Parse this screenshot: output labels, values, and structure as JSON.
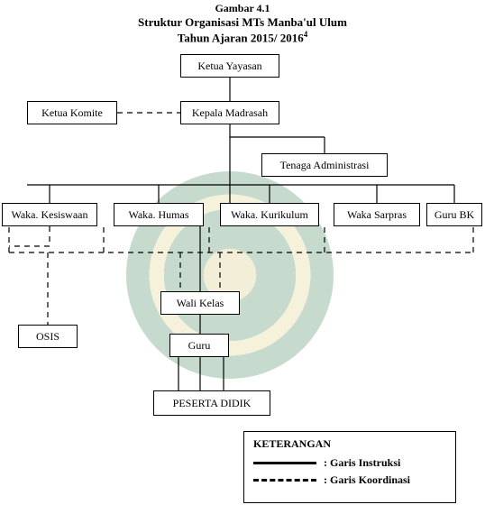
{
  "header": {
    "line0": "Gambar 4.1",
    "line1": "Struktur Organisasi MTs Manba'ul Ulum",
    "line2_prefix": "Tahun Ajaran 2015/ 2016",
    "line2_sup": "4"
  },
  "nodes": {
    "ketua_yayasan": "Ketua Yayasan",
    "ketua_komite": "Ketua Komite",
    "kepala_madrasah": "Kepala Madrasah",
    "tenaga_admin": "Tenaga Administrasi",
    "waka_kesiswaan": "Waka. Kesiswaan",
    "waka_humas": "Waka. Humas",
    "waka_kurikulum": "Waka. Kurikulum",
    "waka_sarpras": "Waka Sarpras",
    "guru_bk": "Guru BK",
    "wali_kelas": "Wali Kelas",
    "osis": "OSIS",
    "guru": "Guru",
    "peserta_didik": "PESERTA DIDIK"
  },
  "legend": {
    "title": "KETERANGAN",
    "solid": ": Garis Instruksi",
    "dashed": ": Garis Koordinasi"
  },
  "style": {
    "solid_color": "#000000",
    "dashed_color": "#000000",
    "solid_width": 1.2,
    "dashed_width": 1.2,
    "dash_pattern": "6,5"
  },
  "edges_solid": [
    [
      255,
      86,
      255,
      112
    ],
    [
      255,
      138,
      255,
      205
    ],
    [
      255,
      152,
      360,
      152
    ],
    [
      360,
      152,
      360,
      170
    ],
    [
      30,
      205,
      504,
      205
    ],
    [
      55,
      205,
      55,
      225
    ],
    [
      176,
      205,
      176,
      225
    ],
    [
      299,
      205,
      299,
      225
    ],
    [
      418,
      205,
      418,
      225
    ],
    [
      504,
      205,
      504,
      225
    ],
    [
      255,
      205,
      255,
      225
    ],
    [
      222,
      251,
      222,
      323
    ],
    [
      222,
      349,
      222,
      370
    ],
    [
      222,
      396,
      222,
      433
    ],
    [
      248,
      396,
      248,
      433
    ],
    [
      198,
      396,
      198,
      433
    ]
  ],
  "edges_dashed": [
    [
      130,
      125,
      200,
      125
    ],
    [
      10,
      280,
      525,
      280
    ],
    [
      10,
      280,
      10,
      251
    ],
    [
      525,
      280,
      525,
      251
    ],
    [
      115,
      280,
      115,
      251
    ],
    [
      232,
      280,
      232,
      251
    ],
    [
      360,
      280,
      360,
      251
    ],
    [
      55,
      251,
      55,
      273
    ],
    [
      55,
      273,
      10,
      273
    ],
    [
      200,
      280,
      200,
      323
    ],
    [
      244,
      280,
      244,
      323
    ],
    [
      53,
      280,
      53,
      360
    ]
  ]
}
